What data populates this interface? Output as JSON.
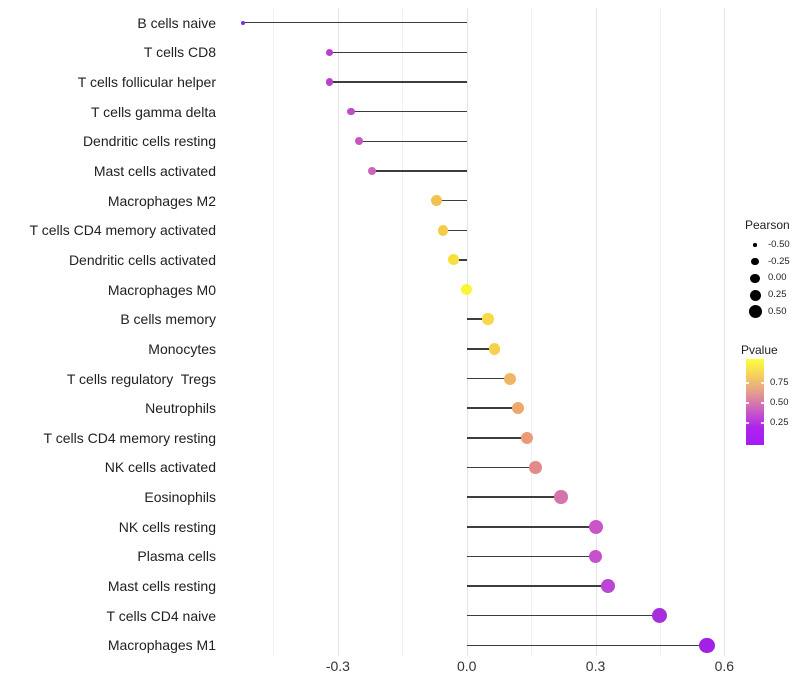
{
  "chart_data": {
    "type": "lollipop",
    "orientation": "horizontal",
    "title": "",
    "xlabel": "",
    "ylabel": "",
    "x_axis": {
      "ticks": [
        -0.3,
        0.0,
        0.3,
        0.6
      ],
      "tick_labels": [
        "-0.3",
        "0.0",
        "0.3",
        "0.6"
      ],
      "minor_gridlines": [
        -0.45,
        -0.15,
        0.15,
        0.45
      ],
      "range": [
        -0.555,
        0.685
      ]
    },
    "stem_color": "#3d3d3d",
    "rows": [
      {
        "label": "B cells naive",
        "pearson": -0.52,
        "dot_color": "#7B2FE3",
        "dot_size": 4
      },
      {
        "label": "T cells CD8",
        "pearson": -0.32,
        "dot_color": "#B73FCB",
        "dot_size": 7.5
      },
      {
        "label": "T cells follicular helper",
        "pearson": -0.32,
        "dot_color": "#B942CC",
        "dot_size": 7.5
      },
      {
        "label": "T cells gamma delta",
        "pearson": -0.27,
        "dot_color": "#BE4EC8",
        "dot_size": 7.5
      },
      {
        "label": "Dendritic cells resting",
        "pearson": -0.25,
        "dot_color": "#C458C1",
        "dot_size": 8
      },
      {
        "label": "Mast cells activated",
        "pearson": -0.22,
        "dot_color": "#CB65B7",
        "dot_size": 8.5
      },
      {
        "label": "Macrophages M2",
        "pearson": -0.07,
        "dot_color": "#F3C150",
        "dot_size": 11
      },
      {
        "label": "T cells CD4 memory activated",
        "pearson": -0.055,
        "dot_color": "#F5CB4A",
        "dot_size": 10.5
      },
      {
        "label": "Dendritic cells activated",
        "pearson": -0.03,
        "dot_color": "#F8E03C",
        "dot_size": 11
      },
      {
        "label": "Macrophages M0",
        "pearson": 0.0,
        "dot_color": "#FAF636",
        "dot_size": 11.5
      },
      {
        "label": "B cells memory",
        "pearson": 0.05,
        "dot_color": "#F6DA47",
        "dot_size": 11.5
      },
      {
        "label": "Monocytes",
        "pearson": 0.065,
        "dot_color": "#F5D14E",
        "dot_size": 11.5
      },
      {
        "label": "T cells regulatory  Tregs",
        "pearson": 0.1,
        "dot_color": "#F0B566",
        "dot_size": 12
      },
      {
        "label": "Neutrophils",
        "pearson": 0.12,
        "dot_color": "#EDA86F",
        "dot_size": 12
      },
      {
        "label": "T cells CD4 memory resting",
        "pearson": 0.14,
        "dot_color": "#E99B77",
        "dot_size": 12.5
      },
      {
        "label": "NK cells activated",
        "pearson": 0.16,
        "dot_color": "#E28B88",
        "dot_size": 12.5
      },
      {
        "label": "Eosinophils",
        "pearson": 0.22,
        "dot_color": "#D773AC",
        "dot_size": 13.5
      },
      {
        "label": "NK cells resting",
        "pearson": 0.3,
        "dot_color": "#C955C9",
        "dot_size": 14
      },
      {
        "label": "Plasma cells",
        "pearson": 0.3,
        "dot_color": "#C750CB",
        "dot_size": 13.5
      },
      {
        "label": "Mast cells resting",
        "pearson": 0.33,
        "dot_color": "#BB46D3",
        "dot_size": 14
      },
      {
        "label": "T cells CD4 naive",
        "pearson": 0.45,
        "dot_color": "#A62FDB",
        "dot_size": 15
      },
      {
        "label": "Macrophages M1",
        "pearson": 0.56,
        "dot_color": "#A321E5",
        "dot_size": 15.5
      }
    ]
  },
  "legend_pearson": {
    "title": "Pearson",
    "dot_color": "#000000",
    "entries": [
      {
        "label": "-0.50",
        "size": 3.5
      },
      {
        "label": "-0.25",
        "size": 7.5
      },
      {
        "label": "0.00",
        "size": 9.5
      },
      {
        "label": "0.25",
        "size": 11
      },
      {
        "label": "0.50",
        "size": 13
      }
    ]
  },
  "legend_pvalue": {
    "title": "Pvalue",
    "labels": [
      "0.75",
      "0.50",
      "0.25"
    ],
    "gradient": [
      "#FBFF3B",
      "#F5CD60",
      "#E39A93",
      "#CB5DC2",
      "#AC23EE",
      "#A51CF3"
    ]
  }
}
